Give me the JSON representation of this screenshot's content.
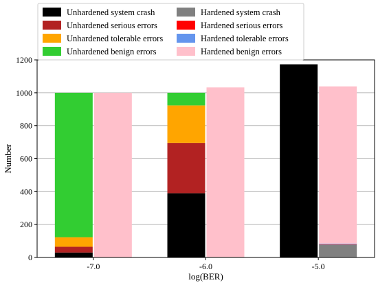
{
  "chart_data": {
    "type": "bar",
    "stacked": true,
    "grouped": true,
    "categories": [
      "-7.0",
      "-6.0",
      "-5.0"
    ],
    "xlabel": "log(BER)",
    "ylabel": "Number",
    "ylim": [
      0,
      1200
    ],
    "yticks": [
      0,
      200,
      400,
      600,
      800,
      1000,
      1200
    ],
    "grid": "horizontal",
    "legend_position": "top",
    "groups": [
      {
        "name": "Unhardened",
        "series": [
          {
            "name": "Unhardened system crash",
            "color": "#000000",
            "values": [
              30,
              390,
              1173
            ]
          },
          {
            "name": "Unhardened serious errors",
            "color": "#b22222",
            "values": [
              35,
              305,
              0
            ]
          },
          {
            "name": "Unhardened tolerable errors",
            "color": "#ffa500",
            "values": [
              58,
              228,
              0
            ]
          },
          {
            "name": "Unhardened benign errors",
            "color": "#32cd32",
            "values": [
              877,
              77,
              0
            ]
          }
        ]
      },
      {
        "name": "Hardened",
        "series": [
          {
            "name": "Hardened system crash",
            "color": "#808080",
            "values": [
              0,
              3,
              78
            ]
          },
          {
            "name": "Hardened serious errors",
            "color": "#ff0000",
            "values": [
              0,
              0,
              2
            ]
          },
          {
            "name": "Hardened tolerable errors",
            "color": "#6495ed",
            "values": [
              0,
              0,
              4
            ]
          },
          {
            "name": "Hardened benign errors",
            "color": "#ffc0cb",
            "values": [
              1000,
              1030,
              955
            ]
          }
        ]
      }
    ]
  }
}
